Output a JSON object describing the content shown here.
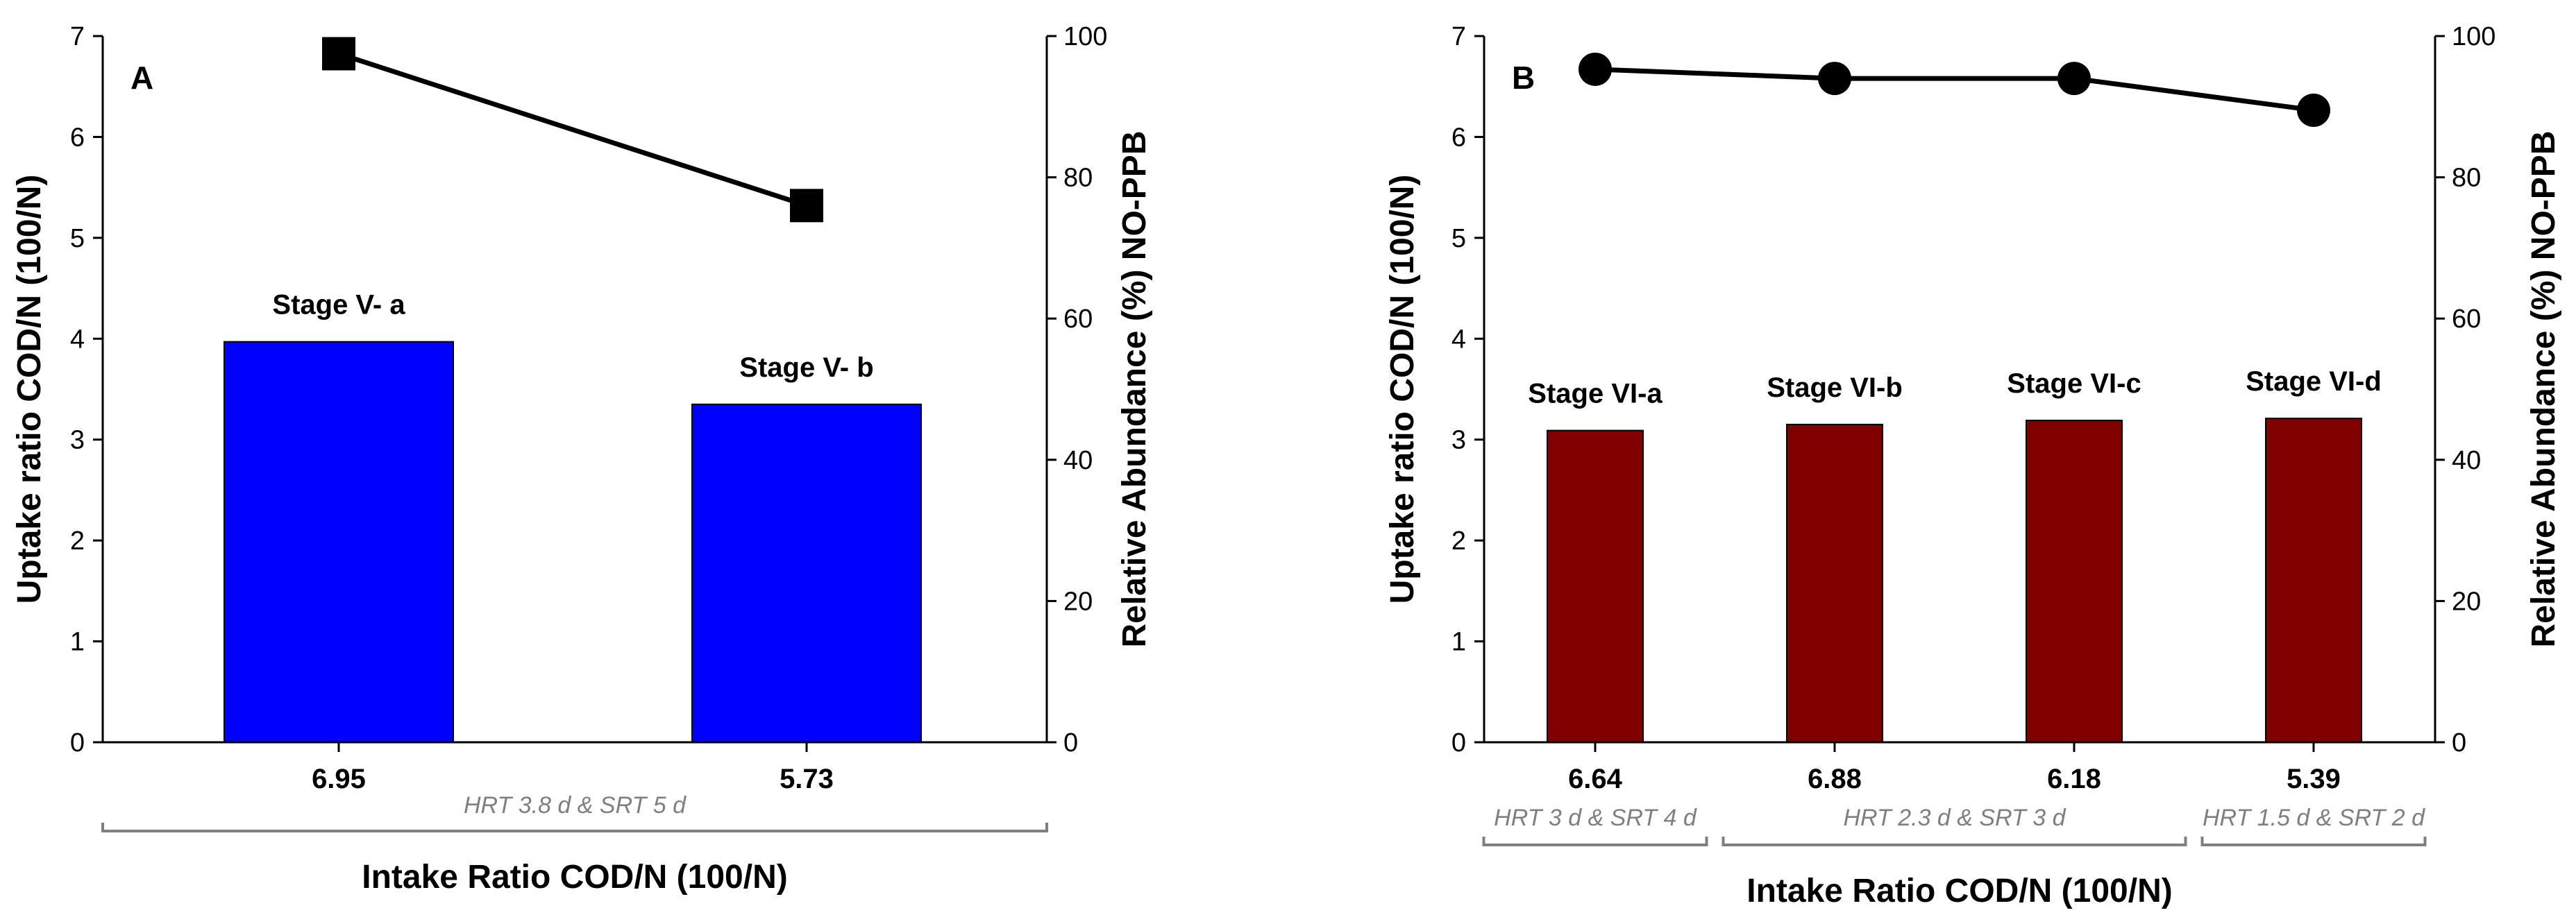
{
  "colors": {
    "panel_a_bar": "#0000ff",
    "panel_b_bar": "#800000",
    "line": "#000000",
    "condition": "#7f7f7f"
  },
  "chart_data": [
    {
      "type": "bar",
      "panel": "A",
      "categories": [
        "6.95",
        "5.73"
      ],
      "bar_labels": [
        "Stage V- a",
        "Stage V- b"
      ],
      "series": [
        {
          "name": "Uptake ratio COD/N (100/N)",
          "type": "bar",
          "axis": "left",
          "values": [
            3.97,
            3.35
          ]
        },
        {
          "name": "Relative Abundance (%) NO-PPB",
          "type": "line",
          "axis": "right",
          "marker": "square",
          "values": [
            97.5,
            76.0
          ]
        }
      ],
      "xlabel": "Intake Ratio COD/N (100/N)",
      "ylabel": "Uptake ratio COD/N (100/N)",
      "y2label": "Relative Abundance (%) NO-PPB",
      "ylim": [
        0,
        7
      ],
      "yticks": [
        "0",
        "1",
        "2",
        "3",
        "4",
        "5",
        "6",
        "7"
      ],
      "y2lim": [
        0,
        100
      ],
      "y2ticks": [
        "0",
        "20",
        "40",
        "60",
        "80",
        "100"
      ],
      "conditions": [
        {
          "text": "HRT 3.8 d  &  SRT 5 d",
          "span": [
            0,
            1
          ]
        }
      ]
    },
    {
      "type": "bar",
      "panel": "B",
      "categories": [
        "6.64",
        "6.88",
        "6.18",
        "5.39"
      ],
      "bar_labels": [
        "Stage VI-a",
        "Stage VI-b",
        "Stage VI-c",
        "Stage VI-d"
      ],
      "series": [
        {
          "name": "Uptake ratio COD/N (100/N)",
          "type": "bar",
          "axis": "left",
          "values": [
            3.09,
            3.15,
            3.19,
            3.21
          ]
        },
        {
          "name": "Relative Abundance (%) NO-PPB",
          "type": "line",
          "axis": "right",
          "marker": "circle",
          "values": [
            95.3,
            94.0,
            94.0,
            89.5
          ]
        }
      ],
      "xlabel": "Intake Ratio COD/N (100/N)",
      "ylabel": "Uptake ratio COD/N (100/N)",
      "y2label": "Relative Abundance (%) NO-PPB",
      "ylim": [
        0,
        7
      ],
      "yticks": [
        "0",
        "1",
        "2",
        "3",
        "4",
        "5",
        "6",
        "7"
      ],
      "y2lim": [
        0,
        100
      ],
      "y2ticks": [
        "0",
        "20",
        "40",
        "60",
        "80",
        "100"
      ],
      "conditions": [
        {
          "text": "HRT 3 d & SRT 4 d",
          "span": [
            0,
            0
          ]
        },
        {
          "text": "HRT 2.3 d & SRT 3 d",
          "span": [
            1,
            2
          ]
        },
        {
          "text": "HRT 1.5 d & SRT 2 d",
          "span": [
            3,
            3
          ]
        }
      ]
    }
  ]
}
